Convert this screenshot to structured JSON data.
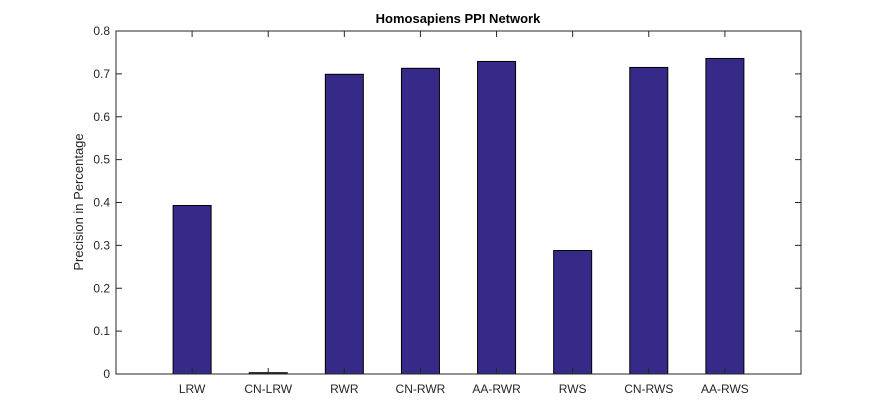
{
  "chart_data": {
    "type": "bar",
    "title": "Homosapiens PPI Network",
    "xlabel": "",
    "ylabel": "Precision in Percentage",
    "categories": [
      "LRW",
      "CN-LRW",
      "RWR",
      "CN-RWR",
      "AA-RWR",
      "RWS",
      "CN-RWS",
      "AA-RWS"
    ],
    "values": [
      0.393,
      0.003,
      0.699,
      0.713,
      0.729,
      0.288,
      0.715,
      0.736
    ],
    "ylim": [
      0,
      0.8
    ],
    "yticks": [
      0,
      0.1,
      0.2,
      0.3,
      0.4,
      0.5,
      0.6,
      0.7,
      0.8
    ],
    "ytick_labels": [
      "0",
      "0.1",
      "0.2",
      "0.3",
      "0.4",
      "0.5",
      "0.6",
      "0.7",
      "0.8"
    ],
    "grid": false,
    "bar_color": "#352a87",
    "legend": null
  }
}
